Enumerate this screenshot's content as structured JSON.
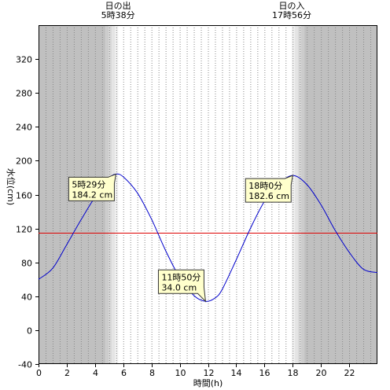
{
  "chart_data": {
    "type": "line",
    "title": "",
    "xlabel": "時間(h)",
    "ylabel": "水位(cm)",
    "xlim": [
      0,
      24
    ],
    "ylim": [
      -40,
      360
    ],
    "x_ticks": [
      0,
      2,
      4,
      6,
      8,
      10,
      12,
      14,
      16,
      18,
      20,
      22
    ],
    "y_ticks": [
      -40,
      0,
      40,
      80,
      120,
      160,
      200,
      240,
      280,
      320
    ],
    "grid": {
      "x_minor_step": 0.5,
      "y": false
    },
    "sunrise": {
      "label": "日の出",
      "time_text": "5時38分",
      "hour": 5.633
    },
    "sunset": {
      "label": "日の入",
      "time_text": "17時56分",
      "hour": 17.933
    },
    "reference_line": {
      "y": 115,
      "color": "#dd0000"
    },
    "series": [
      {
        "color": "#0000cc",
        "x": [
          0,
          1,
          2,
          3,
          4,
          5,
          5.48,
          6,
          7,
          8,
          9,
          10,
          11,
          11.83,
          12.5,
          13,
          14,
          15,
          16,
          17,
          18,
          19,
          20,
          21,
          22,
          23,
          24
        ],
        "values": [
          60,
          73,
          101,
          130,
          157,
          179,
          184.2,
          181,
          162,
          131,
          94,
          62,
          41,
          34,
          38,
          48,
          83,
          120,
          152,
          172,
          182.6,
          172,
          148,
          118,
          92,
          72,
          68
        ]
      }
    ],
    "annotations": [
      {
        "time": "5時29分",
        "value": "184.2 cm",
        "x": 5.48,
        "y": 184.2
      },
      {
        "time": "11時50分",
        "value": "34.0 cm",
        "x": 11.83,
        "y": 34.0
      },
      {
        "time": "18時0分",
        "value": "182.6 cm",
        "x": 18.0,
        "y": 182.6
      }
    ],
    "colors": {
      "night": "#c0c0c0",
      "day": "#ffffff",
      "twilight": [
        "#cccccc",
        "#d8d8d8",
        "#e4e4e4",
        "#f0f0f0"
      ],
      "grid": "#888888",
      "annotation_bg": "#ffffcc"
    }
  }
}
